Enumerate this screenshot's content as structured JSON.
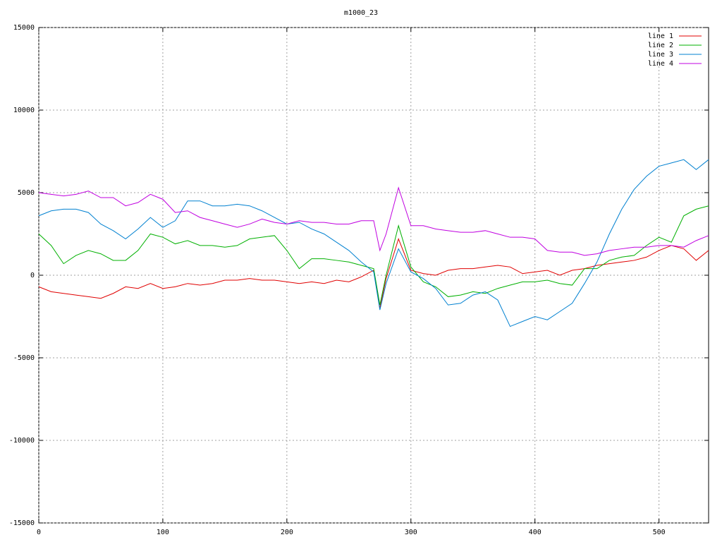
{
  "chart_data": {
    "type": "line",
    "title": "m1000_23",
    "x": [
      0,
      10,
      20,
      30,
      40,
      50,
      60,
      70,
      80,
      90,
      100,
      110,
      120,
      130,
      140,
      150,
      160,
      170,
      180,
      190,
      200,
      210,
      220,
      230,
      240,
      250,
      260,
      270,
      275,
      280,
      290,
      300,
      310,
      320,
      330,
      340,
      350,
      360,
      370,
      380,
      390,
      400,
      410,
      420,
      430,
      440,
      450,
      460,
      470,
      480,
      490,
      500,
      510,
      520,
      530,
      540
    ],
    "series": [
      {
        "name": "line 1",
        "color": "#e00000",
        "values": [
          -700,
          -1000,
          -1100,
          -1200,
          -1300,
          -1400,
          -1100,
          -700,
          -800,
          -500,
          -800,
          -700,
          -500,
          -600,
          -500,
          -300,
          -300,
          -200,
          -300,
          -300,
          -400,
          -500,
          -400,
          -500,
          -300,
          -400,
          -100,
          300,
          -2000,
          -200,
          2200,
          300,
          100,
          0,
          300,
          400,
          400,
          500,
          600,
          500,
          100,
          200,
          300,
          0,
          300,
          400,
          600,
          700,
          800,
          900,
          1100,
          1500,
          1800,
          1600,
          900,
          1500
        ]
      },
      {
        "name": "line 2",
        "color": "#00b000",
        "values": [
          2500,
          1800,
          700,
          1200,
          1500,
          1300,
          900,
          900,
          1500,
          2500,
          2300,
          1900,
          2100,
          1800,
          1800,
          1700,
          1800,
          2200,
          2300,
          2400,
          1500,
          400,
          1000,
          1000,
          900,
          800,
          600,
          400,
          -1800,
          0,
          3000,
          500,
          -400,
          -700,
          -1300,
          -1200,
          -1000,
          -1100,
          -800,
          -600,
          -400,
          -400,
          -300,
          -500,
          -600,
          400,
          400,
          900,
          1100,
          1200,
          1800,
          2300,
          2000,
          3600,
          4000,
          4200
        ]
      },
      {
        "name": "line 3",
        "color": "#0080d0",
        "values": [
          3600,
          3900,
          4000,
          4000,
          3800,
          3100,
          2700,
          2200,
          2800,
          3500,
          2900,
          3300,
          4500,
          4500,
          4200,
          4200,
          4300,
          4200,
          3900,
          3500,
          3100,
          3200,
          2800,
          2500,
          2000,
          1500,
          800,
          200,
          -2100,
          -500,
          1600,
          200,
          -200,
          -800,
          -1800,
          -1700,
          -1200,
          -1000,
          -1500,
          -3100,
          -2800,
          -2500,
          -2700,
          -2200,
          -1700,
          -500,
          800,
          2500,
          4000,
          5200,
          6000,
          6600,
          6800,
          7000,
          6400,
          7000
        ]
      },
      {
        "name": "line 4",
        "color": "#c000e0",
        "values": [
          5000,
          4900,
          4800,
          4900,
          5100,
          4700,
          4700,
          4200,
          4400,
          4900,
          4600,
          3800,
          3900,
          3500,
          3300,
          3100,
          2900,
          3100,
          3400,
          3200,
          3100,
          3300,
          3200,
          3200,
          3100,
          3100,
          3300,
          3300,
          1500,
          2500,
          5300,
          3000,
          3000,
          2800,
          2700,
          2600,
          2600,
          2700,
          2500,
          2300,
          2300,
          2200,
          1500,
          1400,
          1400,
          1200,
          1300,
          1500,
          1600,
          1700,
          1700,
          1800,
          1800,
          1700,
          2100,
          2400
        ]
      }
    ],
    "xlim": [
      0,
      540
    ],
    "xticks": [
      0,
      100,
      200,
      300,
      400,
      500
    ],
    "ylim": [
      -15000,
      15000
    ],
    "yticks": [
      -15000,
      -10000,
      -5000,
      0,
      5000,
      10000,
      15000
    ],
    "grid": true,
    "legend": "top-right"
  }
}
